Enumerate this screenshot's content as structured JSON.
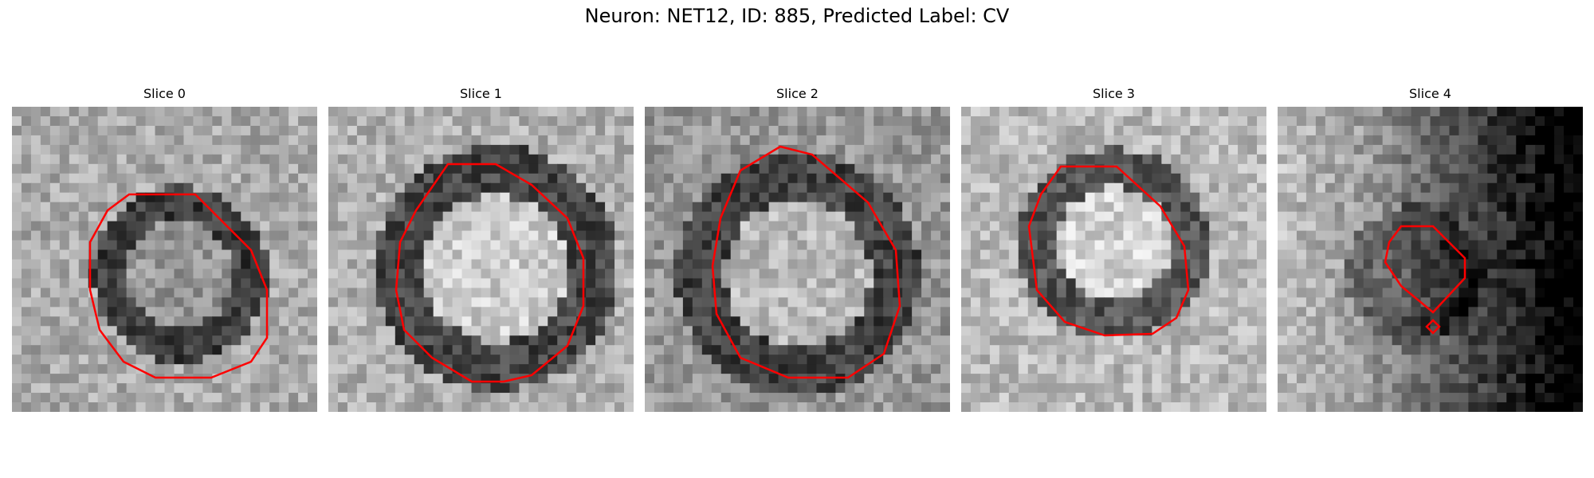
{
  "figure": {
    "suptitle": "Neuron: NET12, ID: 885, Predicted Label: CV",
    "contour_color": "#ff0000",
    "colormap": "gray"
  },
  "panels": [
    {
      "title": "Slice 0"
    },
    {
      "title": "Slice 1"
    },
    {
      "title": "Slice 2"
    },
    {
      "title": "Slice 3"
    },
    {
      "title": "Slice 4"
    }
  ]
}
